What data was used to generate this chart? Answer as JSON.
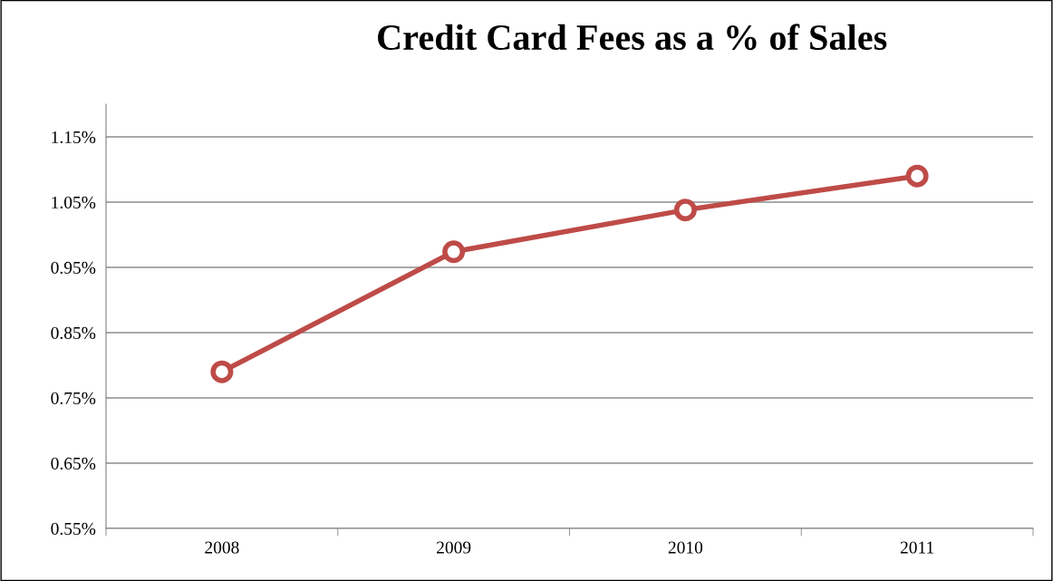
{
  "chart_data": {
    "type": "line",
    "title": "Credit Card Fees as a % of Sales",
    "categories": [
      "2008",
      "2009",
      "2010",
      "2011"
    ],
    "series": [
      {
        "color": "#be4b48",
        "values": [
          0.79,
          0.974,
          1.038,
          1.09
        ]
      }
    ],
    "ylim": [
      0.55,
      1.2
    ],
    "yticks": [
      {
        "value": 0.55,
        "label": "0.55%"
      },
      {
        "value": 0.65,
        "label": "0.65%"
      },
      {
        "value": 0.75,
        "label": "0.75%"
      },
      {
        "value": 0.85,
        "label": "0.85%"
      },
      {
        "value": 0.95,
        "label": "0.95%"
      },
      {
        "value": 1.05,
        "label": "1.05%"
      },
      {
        "value": 1.15,
        "label": "1.15%"
      }
    ],
    "grid": "y",
    "marker": "circle",
    "line_style": "solid",
    "legend": false
  }
}
